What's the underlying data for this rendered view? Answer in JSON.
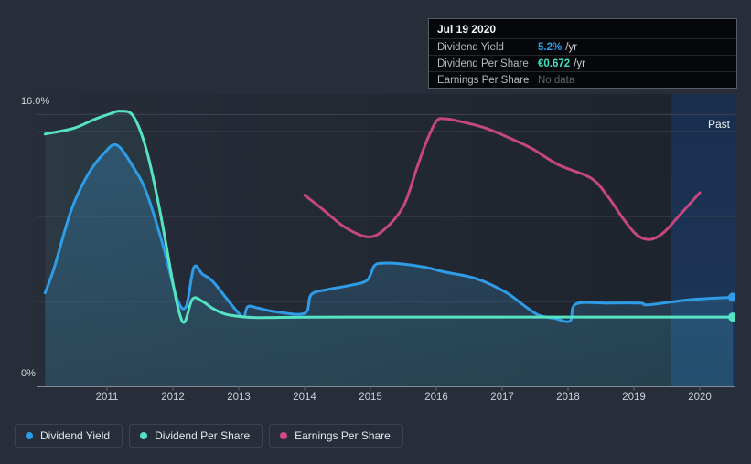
{
  "tooltip": {
    "date": "Jul 19 2020",
    "rows": [
      {
        "label": "Dividend Yield",
        "value": "5.2%",
        "suffix": "/yr",
        "value_color": "#2f9fe8"
      },
      {
        "label": "Dividend Per Share",
        "value": "€0.672",
        "suffix": "/yr",
        "value_color": "#43e0c0"
      },
      {
        "label": "Earnings Per Share",
        "value": "No data",
        "suffix": "",
        "value_color": "#5f6468"
      }
    ]
  },
  "axis": {
    "y_max_label": "16.0%",
    "y_min_label": "0%",
    "past_label": "Past"
  },
  "legend": {
    "items": [
      {
        "label": "Dividend Yield",
        "color": "#2b9ce8"
      },
      {
        "label": "Dividend Per Share",
        "color": "#53e2c5"
      },
      {
        "label": "Earnings Per Share",
        "color": "#d04b85"
      }
    ]
  },
  "chart_data": {
    "type": "line",
    "x_tick_labels": [
      "2011",
      "2012",
      "2013",
      "2014",
      "2015",
      "2016",
      "2017",
      "2018",
      "2019",
      "2020"
    ],
    "y_axis": {
      "min": 0,
      "max": 16,
      "unit": "%",
      "top_label": "16.0%",
      "bottom_label": "0%",
      "gridlines_pct": [
        5,
        10,
        15,
        16
      ]
    },
    "past_band_start_year": 2019.55,
    "series": [
      {
        "name": "Dividend Yield",
        "color": "#2e9ce7",
        "area": true,
        "end_dot": true,
        "points": [
          [
            2010.06,
            5.5
          ],
          [
            2010.2,
            7.0
          ],
          [
            2010.45,
            10.3
          ],
          [
            2010.7,
            12.4
          ],
          [
            2010.95,
            13.7
          ],
          [
            2011.15,
            14.2
          ],
          [
            2011.4,
            12.9
          ],
          [
            2011.6,
            11.4
          ],
          [
            2011.85,
            8.3
          ],
          [
            2012.06,
            5.2
          ],
          [
            2012.2,
            4.7
          ],
          [
            2012.32,
            7.0
          ],
          [
            2012.45,
            6.6
          ],
          [
            2012.6,
            6.2
          ],
          [
            2012.85,
            5.0
          ],
          [
            2013.0,
            4.3
          ],
          [
            2013.08,
            4.1
          ],
          [
            2013.14,
            4.7
          ],
          [
            2013.3,
            4.6
          ],
          [
            2013.55,
            4.4
          ],
          [
            2014.0,
            4.3
          ],
          [
            2014.1,
            5.4
          ],
          [
            2014.35,
            5.7
          ],
          [
            2014.7,
            5.95
          ],
          [
            2014.95,
            6.25
          ],
          [
            2015.06,
            7.1
          ],
          [
            2015.2,
            7.25
          ],
          [
            2015.5,
            7.2
          ],
          [
            2015.85,
            7.0
          ],
          [
            2016.1,
            6.75
          ],
          [
            2016.6,
            6.35
          ],
          [
            2017.05,
            5.55
          ],
          [
            2017.3,
            4.85
          ],
          [
            2017.55,
            4.2
          ],
          [
            2017.8,
            4.0
          ],
          [
            2018.03,
            3.85
          ],
          [
            2018.12,
            4.85
          ],
          [
            2018.6,
            4.9
          ],
          [
            2019.1,
            4.9
          ],
          [
            2019.22,
            4.8
          ],
          [
            2019.85,
            5.1
          ],
          [
            2020.5,
            5.25
          ]
        ]
      },
      {
        "name": "Dividend Per Share",
        "color": "#55e3c4",
        "area": true,
        "end_dot": true,
        "points": [
          [
            2010.06,
            14.85
          ],
          [
            2010.5,
            15.2
          ],
          [
            2010.8,
            15.7
          ],
          [
            2011.05,
            16.05
          ],
          [
            2011.2,
            16.2
          ],
          [
            2011.4,
            15.9
          ],
          [
            2011.6,
            13.9
          ],
          [
            2011.8,
            10.4
          ],
          [
            2012.0,
            6.1
          ],
          [
            2012.1,
            4.3
          ],
          [
            2012.18,
            3.8
          ],
          [
            2012.3,
            5.15
          ],
          [
            2012.45,
            5.0
          ],
          [
            2012.6,
            4.6
          ],
          [
            2012.8,
            4.25
          ],
          [
            2013.05,
            4.1
          ],
          [
            2013.3,
            4.05
          ],
          [
            2014.0,
            4.07
          ],
          [
            2015.0,
            4.08
          ],
          [
            2016.0,
            4.08
          ],
          [
            2017.0,
            4.08
          ],
          [
            2018.0,
            4.08
          ],
          [
            2019.0,
            4.08
          ],
          [
            2020.5,
            4.08
          ]
        ]
      },
      {
        "name": "Earnings Per Share",
        "color": "#c6477f",
        "area": false,
        "end_dot": false,
        "points": [
          [
            2014.0,
            11.25
          ],
          [
            2014.25,
            10.5
          ],
          [
            2014.6,
            9.4
          ],
          [
            2014.95,
            8.8
          ],
          [
            2015.2,
            9.2
          ],
          [
            2015.5,
            10.6
          ],
          [
            2015.7,
            12.8
          ],
          [
            2015.85,
            14.4
          ],
          [
            2016.0,
            15.6
          ],
          [
            2016.12,
            15.75
          ],
          [
            2016.35,
            15.6
          ],
          [
            2016.75,
            15.2
          ],
          [
            2017.15,
            14.55
          ],
          [
            2017.45,
            14.0
          ],
          [
            2017.85,
            13.05
          ],
          [
            2018.35,
            12.25
          ],
          [
            2018.6,
            11.2
          ],
          [
            2018.85,
            9.8
          ],
          [
            2019.05,
            8.9
          ],
          [
            2019.25,
            8.65
          ],
          [
            2019.45,
            9.05
          ],
          [
            2019.7,
            10.1
          ],
          [
            2020.0,
            11.4
          ]
        ]
      }
    ]
  }
}
